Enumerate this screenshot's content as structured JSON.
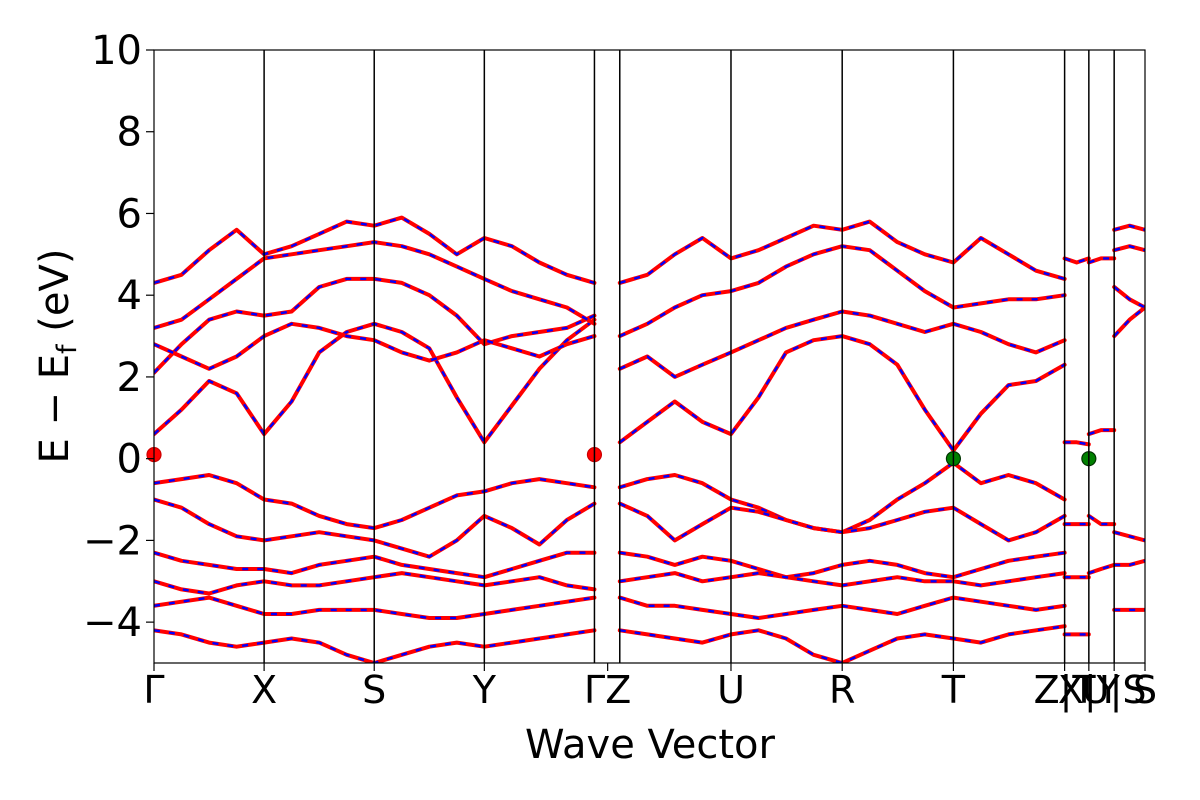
{
  "chart_data": {
    "type": "line",
    "title": "",
    "xlabel": "Wave Vector",
    "ylabel_main": "E − E",
    "ylabel_sub": "f",
    "ylabel_unit": " (eV)",
    "ylim": [
      -5,
      10
    ],
    "yticks": [
      -4,
      -2,
      0,
      2,
      4,
      6,
      8,
      10
    ],
    "ytick_labels": [
      "−4",
      "−2",
      "0",
      "2",
      "4",
      "6",
      "8",
      "10"
    ],
    "kpath": {
      "xmax": 9.0,
      "positions": [
        0,
        1,
        2,
        3,
        4,
        4.23,
        5.24,
        6.25,
        7.26,
        8.27,
        8.49,
        8.72,
        9.0
      ],
      "labels": [
        "Γ",
        "X",
        "S",
        "Y",
        "ΓZ",
        "U",
        "R",
        "T",
        "Z|T",
        "X|Y",
        "U|S",
        "S"
      ],
      "label_positions": [
        0,
        1,
        2,
        3,
        4.12,
        5.24,
        6.25,
        7.26,
        8.27,
        8.49,
        8.72,
        9.0
      ]
    },
    "colors": {
      "up": "#ff0000",
      "down": "#0000ff",
      "vbm_cbm_mark": "#008000",
      "gamma_mark": "#ff0000"
    },
    "series": [
      {
        "x": [
          0,
          0.25,
          0.5,
          0.75,
          1,
          1.25,
          1.5,
          1.75,
          2,
          2.25,
          2.5,
          2.75,
          3,
          3.25,
          3.5,
          3.75,
          4
        ],
        "values": [
          0.6,
          1.2,
          1.9,
          1.6,
          0.6,
          1.4,
          2.6,
          3.1,
          3.3,
          3.1,
          2.7,
          1.5,
          0.4,
          1.3,
          2.2,
          2.9,
          3.4
        ]
      },
      {
        "x": [
          0,
          0.25,
          0.5,
          0.75,
          1,
          1.25,
          1.5,
          1.75,
          2,
          2.25,
          2.5,
          2.75,
          3,
          3.25,
          3.5,
          3.75,
          4
        ],
        "values": [
          2.1,
          2.8,
          3.4,
          3.6,
          3.5,
          3.6,
          4.2,
          4.4,
          4.4,
          4.3,
          4.0,
          3.5,
          2.8,
          3.0,
          3.1,
          3.2,
          3.5
        ]
      },
      {
        "x": [
          0,
          0.25,
          0.5,
          0.75,
          1,
          1.25,
          1.5,
          1.75,
          2,
          2.25,
          2.5,
          2.75,
          3,
          3.25,
          3.5,
          3.75,
          4
        ],
        "values": [
          3.2,
          3.4,
          3.9,
          4.4,
          4.9,
          5.0,
          5.1,
          5.2,
          5.3,
          5.2,
          5.0,
          4.7,
          4.4,
          4.1,
          3.9,
          3.7,
          3.3
        ]
      },
      {
        "x": [
          0,
          0.25,
          0.5,
          0.75,
          1,
          1.25,
          1.5,
          1.75,
          2,
          2.25,
          2.5,
          2.75,
          3,
          3.25,
          3.5,
          3.75,
          4
        ],
        "values": [
          4.3,
          4.5,
          5.1,
          5.6,
          5.0,
          5.2,
          5.5,
          5.8,
          5.7,
          5.9,
          5.5,
          5.0,
          5.4,
          5.2,
          4.8,
          4.5,
          4.3
        ]
      },
      {
        "x": [
          0,
          0.25,
          0.5,
          0.75,
          1,
          1.25,
          1.5,
          1.75,
          2,
          2.25,
          2.5,
          2.75,
          3,
          3.25,
          3.5,
          3.75,
          4
        ],
        "values": [
          2.8,
          2.5,
          2.2,
          2.5,
          3.0,
          3.3,
          3.2,
          3.0,
          2.9,
          2.6,
          2.4,
          2.6,
          2.9,
          2.7,
          2.5,
          2.8,
          3.0
        ]
      },
      {
        "x": [
          0,
          0.25,
          0.5,
          0.75,
          1,
          1.25,
          1.5,
          1.75,
          2,
          2.25,
          2.5,
          2.75,
          3,
          3.25,
          3.5,
          3.75,
          4
        ],
        "values": [
          -0.6,
          -0.5,
          -0.4,
          -0.6,
          -1.0,
          -1.1,
          -1.4,
          -1.6,
          -1.7,
          -1.5,
          -1.2,
          -0.9,
          -0.8,
          -0.6,
          -0.5,
          -0.6,
          -0.7
        ]
      },
      {
        "x": [
          0,
          0.25,
          0.5,
          0.75,
          1,
          1.25,
          1.5,
          1.75,
          2,
          2.25,
          2.5,
          2.75,
          3,
          3.25,
          3.5,
          3.75,
          4
        ],
        "values": [
          -1.0,
          -1.2,
          -1.6,
          -1.9,
          -2.0,
          -1.9,
          -1.8,
          -1.9,
          -2.0,
          -2.2,
          -2.4,
          -2.0,
          -1.4,
          -1.7,
          -2.1,
          -1.5,
          -1.1
        ]
      },
      {
        "x": [
          0,
          0.25,
          0.5,
          0.75,
          1,
          1.25,
          1.5,
          1.75,
          2,
          2.25,
          2.5,
          2.75,
          3,
          3.25,
          3.5,
          3.75,
          4
        ],
        "values": [
          -2.3,
          -2.5,
          -2.6,
          -2.7,
          -2.7,
          -2.8,
          -2.6,
          -2.5,
          -2.4,
          -2.6,
          -2.7,
          -2.8,
          -2.9,
          -2.7,
          -2.5,
          -2.3,
          -2.3
        ]
      },
      {
        "x": [
          0,
          0.25,
          0.5,
          0.75,
          1,
          1.25,
          1.5,
          1.75,
          2,
          2.25,
          2.5,
          2.75,
          3,
          3.25,
          3.5,
          3.75,
          4
        ],
        "values": [
          -3.0,
          -3.2,
          -3.3,
          -3.1,
          -3.0,
          -3.1,
          -3.1,
          -3.0,
          -2.9,
          -2.8,
          -2.9,
          -3.0,
          -3.1,
          -3.0,
          -2.9,
          -3.1,
          -3.2
        ]
      },
      {
        "x": [
          0,
          0.25,
          0.5,
          0.75,
          1,
          1.25,
          1.5,
          1.75,
          2,
          2.25,
          2.5,
          2.75,
          3,
          3.25,
          3.5,
          3.75,
          4
        ],
        "values": [
          -3.6,
          -3.5,
          -3.4,
          -3.6,
          -3.8,
          -3.8,
          -3.7,
          -3.7,
          -3.7,
          -3.8,
          -3.9,
          -3.9,
          -3.8,
          -3.7,
          -3.6,
          -3.5,
          -3.4
        ]
      },
      {
        "x": [
          0,
          0.25,
          0.5,
          0.75,
          1,
          1.25,
          1.5,
          1.75,
          2,
          2.25,
          2.5,
          2.75,
          3,
          3.25,
          3.5,
          3.75,
          4
        ],
        "values": [
          -4.2,
          -4.3,
          -4.5,
          -4.6,
          -4.5,
          -4.4,
          -4.5,
          -4.8,
          -5.0,
          -4.8,
          -4.6,
          -4.5,
          -4.6,
          -4.5,
          -4.4,
          -4.3,
          -4.2
        ]
      },
      {
        "x": [
          4.23,
          4.48,
          4.73,
          4.98,
          5.24,
          5.49,
          5.74,
          5.99,
          6.25,
          6.5,
          6.75,
          7.0,
          7.26,
          7.51,
          7.76,
          8.01,
          8.27
        ],
        "values": [
          0.4,
          0.9,
          1.4,
          0.9,
          0.6,
          1.5,
          2.6,
          2.9,
          3.0,
          2.8,
          2.3,
          1.2,
          0.2,
          1.1,
          1.8,
          1.9,
          2.3
        ]
      },
      {
        "x": [
          4.23,
          4.48,
          4.73,
          4.98,
          5.24,
          5.49,
          5.74,
          5.99,
          6.25,
          6.5,
          6.75,
          7.0,
          7.26,
          7.51,
          7.76,
          8.01,
          8.27
        ],
        "values": [
          2.2,
          2.5,
          2.0,
          2.3,
          2.6,
          2.9,
          3.2,
          3.4,
          3.6,
          3.5,
          3.3,
          3.1,
          3.3,
          3.1,
          2.8,
          2.6,
          2.9
        ]
      },
      {
        "x": [
          4.23,
          4.48,
          4.73,
          4.98,
          5.24,
          5.49,
          5.74,
          5.99,
          6.25,
          6.5,
          6.75,
          7.0,
          7.26,
          7.51,
          7.76,
          8.01,
          8.27
        ],
        "values": [
          4.3,
          4.5,
          5.0,
          5.4,
          4.9,
          5.1,
          5.4,
          5.7,
          5.6,
          5.8,
          5.3,
          5.0,
          4.8,
          5.4,
          5.0,
          4.6,
          4.4
        ]
      },
      {
        "x": [
          4.23,
          4.48,
          4.73,
          4.98,
          5.24,
          5.49,
          5.74,
          5.99,
          6.25,
          6.5,
          6.75,
          7.0,
          7.26,
          7.51,
          7.76,
          8.01,
          8.27
        ],
        "values": [
          3.0,
          3.3,
          3.7,
          4.0,
          4.1,
          4.3,
          4.7,
          5.0,
          5.2,
          5.1,
          4.6,
          4.1,
          3.7,
          3.8,
          3.9,
          3.9,
          4.0
        ]
      },
      {
        "x": [
          4.23,
          4.48,
          4.73,
          4.98,
          5.24,
          5.49,
          5.74,
          5.99,
          6.25,
          6.5,
          6.75,
          7.0,
          7.26,
          7.51,
          7.76,
          8.01,
          8.27
        ],
        "values": [
          -0.7,
          -0.5,
          -0.4,
          -0.6,
          -1.0,
          -1.2,
          -1.5,
          -1.7,
          -1.8,
          -1.5,
          -1.0,
          -0.6,
          -0.1,
          -0.6,
          -0.4,
          -0.6,
          -1.0
        ]
      },
      {
        "x": [
          4.23,
          4.48,
          4.73,
          4.98,
          5.24,
          5.49,
          5.74,
          5.99,
          6.25,
          6.5,
          6.75,
          7.0,
          7.26,
          7.51,
          7.76,
          8.01,
          8.27
        ],
        "values": [
          -1.1,
          -1.4,
          -2.0,
          -1.6,
          -1.2,
          -1.3,
          -1.5,
          -1.7,
          -1.8,
          -1.7,
          -1.5,
          -1.3,
          -1.2,
          -1.6,
          -2.0,
          -1.8,
          -1.4
        ]
      },
      {
        "x": [
          4.23,
          4.48,
          4.73,
          4.98,
          5.24,
          5.49,
          5.74,
          5.99,
          6.25,
          6.5,
          6.75,
          7.0,
          7.26,
          7.51,
          7.76,
          8.01,
          8.27
        ],
        "values": [
          -2.3,
          -2.4,
          -2.6,
          -2.4,
          -2.5,
          -2.7,
          -2.9,
          -2.8,
          -2.6,
          -2.5,
          -2.6,
          -2.8,
          -2.9,
          -2.7,
          -2.5,
          -2.4,
          -2.3
        ]
      },
      {
        "x": [
          4.23,
          4.48,
          4.73,
          4.98,
          5.24,
          5.49,
          5.74,
          5.99,
          6.25,
          6.5,
          6.75,
          7.0,
          7.26,
          7.51,
          7.76,
          8.01,
          8.27
        ],
        "values": [
          -3.0,
          -2.9,
          -2.8,
          -3.0,
          -2.9,
          -2.8,
          -2.9,
          -3.0,
          -3.1,
          -3.0,
          -2.9,
          -3.0,
          -3.0,
          -3.1,
          -3.0,
          -2.9,
          -2.8
        ]
      },
      {
        "x": [
          4.23,
          4.48,
          4.73,
          4.98,
          5.24,
          5.49,
          5.74,
          5.99,
          6.25,
          6.5,
          6.75,
          7.0,
          7.26,
          7.51,
          7.76,
          8.01,
          8.27
        ],
        "values": [
          -3.4,
          -3.6,
          -3.6,
          -3.7,
          -3.8,
          -3.9,
          -3.8,
          -3.7,
          -3.6,
          -3.7,
          -3.8,
          -3.6,
          -3.4,
          -3.5,
          -3.6,
          -3.7,
          -3.6
        ]
      },
      {
        "x": [
          4.23,
          4.48,
          4.73,
          4.98,
          5.24,
          5.49,
          5.74,
          5.99,
          6.25,
          6.5,
          6.75,
          7.0,
          7.26,
          7.51,
          7.76,
          8.01,
          8.27
        ],
        "values": [
          -4.2,
          -4.3,
          -4.4,
          -4.5,
          -4.3,
          -4.2,
          -4.4,
          -4.8,
          -5.0,
          -4.7,
          -4.4,
          -4.3,
          -4.4,
          -4.5,
          -4.3,
          -4.2,
          -4.1
        ]
      },
      {
        "x": [
          8.27,
          8.38,
          8.49
        ],
        "values": [
          4.9,
          4.8,
          4.9
        ]
      },
      {
        "x": [
          8.27,
          8.38,
          8.49
        ],
        "values": [
          0.4,
          0.4,
          0.35
        ]
      },
      {
        "x": [
          8.27,
          8.38,
          8.49
        ],
        "values": [
          -1.6,
          -1.6,
          -1.6
        ]
      },
      {
        "x": [
          8.27,
          8.38,
          8.49
        ],
        "values": [
          -2.9,
          -2.9,
          -2.9
        ]
      },
      {
        "x": [
          8.27,
          8.38,
          8.49
        ],
        "values": [
          -4.3,
          -4.3,
          -4.3
        ]
      },
      {
        "x": [
          8.49,
          8.6,
          8.72
        ],
        "values": [
          4.8,
          4.9,
          4.9
        ]
      },
      {
        "x": [
          8.49,
          8.6,
          8.72
        ],
        "values": [
          0.6,
          0.7,
          0.7
        ]
      },
      {
        "x": [
          8.49,
          8.6,
          8.72
        ],
        "values": [
          -1.4,
          -1.6,
          -1.6
        ]
      },
      {
        "x": [
          8.49,
          8.6,
          8.72
        ],
        "values": [
          -2.8,
          -2.7,
          -2.6
        ]
      },
      {
        "x": [
          8.72,
          8.86,
          9.0
        ],
        "values": [
          5.6,
          5.7,
          5.6
        ]
      },
      {
        "x": [
          8.72,
          8.86,
          9.0
        ],
        "values": [
          5.1,
          5.2,
          5.1
        ]
      },
      {
        "x": [
          8.72,
          8.86,
          9.0
        ],
        "values": [
          3.0,
          3.4,
          3.7
        ]
      },
      {
        "x": [
          8.72,
          8.86,
          9.0
        ],
        "values": [
          4.2,
          3.9,
          3.7
        ]
      },
      {
        "x": [
          8.72,
          8.86,
          9.0
        ],
        "values": [
          -1.8,
          -1.9,
          -2.0
        ]
      },
      {
        "x": [
          8.72,
          8.86,
          9.0
        ],
        "values": [
          -2.6,
          -2.6,
          -2.5
        ]
      },
      {
        "x": [
          8.72,
          8.86,
          9.0
        ],
        "values": [
          -3.7,
          -3.7,
          -3.7
        ]
      }
    ],
    "markers": [
      {
        "kind": "gamma",
        "x": 0,
        "y": 0.1
      },
      {
        "kind": "gamma",
        "x": 4,
        "y": 0.1
      },
      {
        "kind": "extremum",
        "x": 7.26,
        "y": 0.0
      },
      {
        "kind": "extremum",
        "x": 8.49,
        "y": 0.0
      }
    ]
  }
}
